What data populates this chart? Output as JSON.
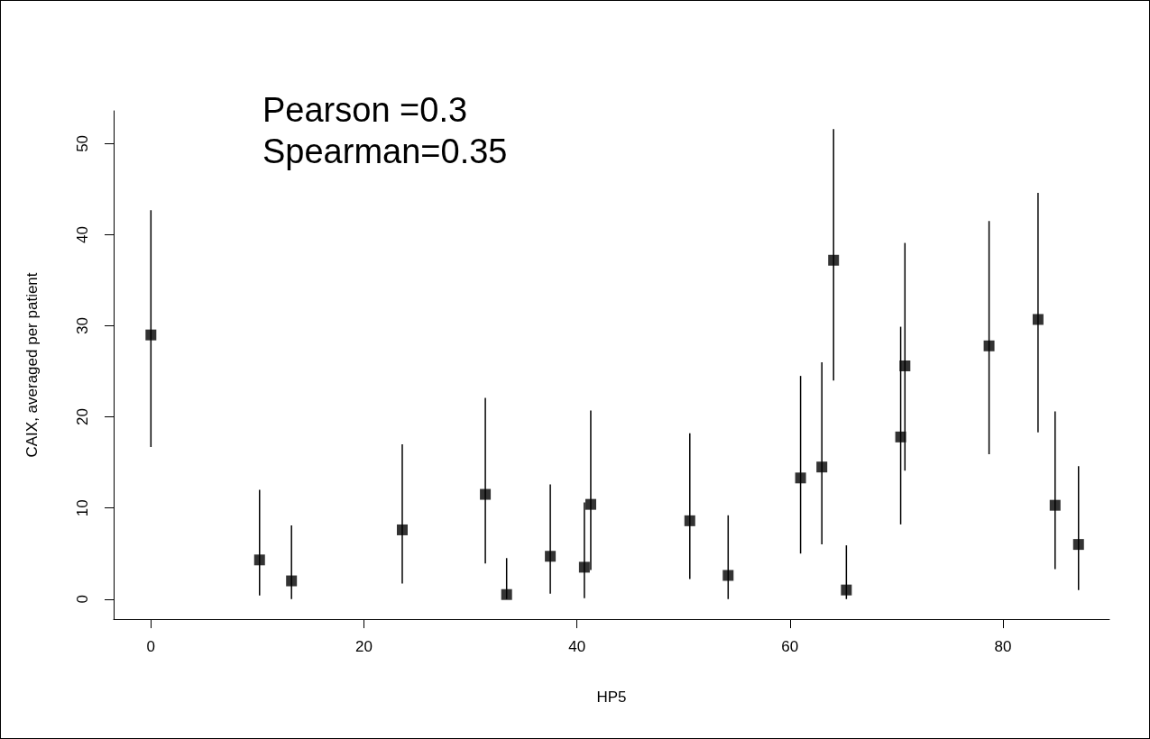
{
  "chart_data": {
    "type": "scatter",
    "xlabel": "HP5",
    "ylabel": "CAIX, averaged per patient",
    "annotations": [
      "Pearson =0.3",
      "Spearman=0.35"
    ],
    "x": [
      0,
      10.2,
      13.2,
      23.6,
      31.4,
      33.4,
      37.5,
      40.7,
      41.3,
      50.6,
      54.2,
      61.0,
      63.0,
      64.1,
      65.3,
      70.4,
      70.8,
      78.7,
      83.3,
      84.9,
      87.1
    ],
    "values": [
      29.0,
      4.3,
      2.0,
      7.6,
      11.5,
      0.5,
      4.7,
      3.5,
      10.4,
      8.6,
      2.6,
      13.3,
      14.5,
      37.2,
      1.0,
      17.8,
      25.6,
      27.8,
      30.7,
      10.3,
      6.0
    ],
    "errors": [
      [
        16.7,
        42.7
      ],
      [
        0.4,
        12.0
      ],
      [
        0,
        8.1
      ],
      [
        1.7,
        17.0
      ],
      [
        3.9,
        22.1
      ],
      [
        0,
        4.5
      ],
      [
        0.6,
        12.6
      ],
      [
        0.1,
        10.6
      ],
      [
        3.2,
        20.7
      ],
      [
        2.2,
        18.2
      ],
      [
        0,
        9.2
      ],
      [
        5.0,
        24.5
      ],
      [
        6.0,
        26.0
      ],
      [
        24.0,
        51.6
      ],
      [
        0,
        5.9
      ],
      [
        8.2,
        29.9
      ],
      [
        14.1,
        39.1
      ],
      [
        15.9,
        41.5
      ],
      [
        18.3,
        44.6
      ],
      [
        3.3,
        20.6
      ],
      [
        1.0,
        14.6
      ]
    ],
    "color": "#000000",
    "marker": "square",
    "xlim": [
      -3.5,
      90
    ],
    "xticks": [
      0,
      20,
      40,
      60,
      80
    ],
    "ylim": [
      -2.2,
      53.6
    ],
    "yticks": [
      0,
      10,
      20,
      30,
      40,
      50
    ],
    "grid": false
  }
}
